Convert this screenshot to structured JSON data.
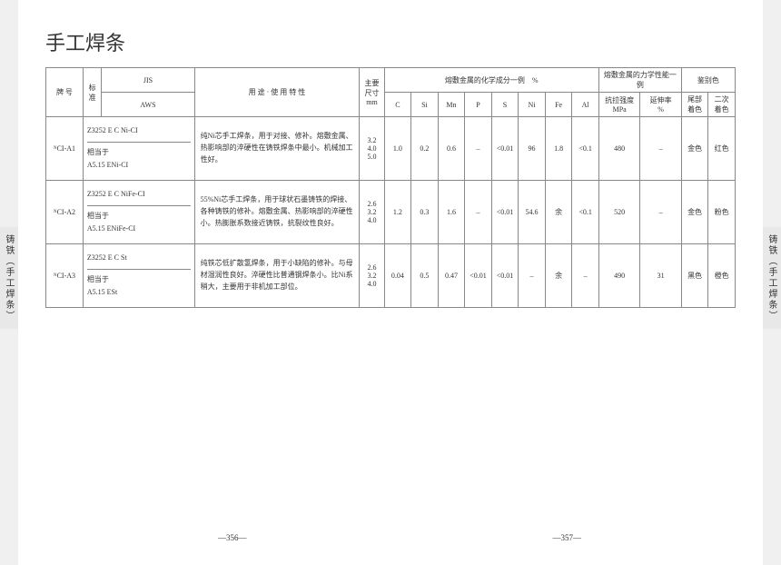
{
  "title": "手工焊条",
  "side_tab": "铸铁（手工焊条）",
  "page_left": "—356—",
  "page_right": "—357—",
  "headers": {
    "grade": "牌 号",
    "standard": "标\n准",
    "jis": "JIS",
    "aws": "AWS",
    "usage": "用 途 · 使 用 特 性",
    "size": "主要\n尺寸\nmm",
    "chem_group": "熔敷金属的化学成分一例　%",
    "mech_group": "熔敷金属的力学性能一例",
    "color_group": "鉴别色",
    "c": "C",
    "si": "Si",
    "mn": "Mn",
    "p": "P",
    "s": "S",
    "ni": "Ni",
    "fe": "Fe",
    "al": "Al",
    "tensile": "抗拉强度\nMPa",
    "elong": "延伸率\n%",
    "color1": "尾部\n着色",
    "color2": "二次\n着色"
  },
  "rows": [
    {
      "grade": "ᴺCI-A1",
      "jis": "Z3252 E C Ni-CI",
      "aws_prefix": "相当于",
      "aws": "A5.15 ENi-CI",
      "usage": "纯Ni芯手工焊条，用于对接、修补。熔敷金属、热影响部的淬硬性在铸铁焊条中最小。机械加工性好。",
      "size": "3.2\n4.0\n5.0",
      "c": "1.0",
      "si": "0.2",
      "mn": "0.6",
      "p": "–",
      "s": "<0.01",
      "ni": "96",
      "fe": "1.8",
      "al": "<0.1",
      "tensile": "480",
      "elong": "–",
      "color1": "金色",
      "color2": "红色"
    },
    {
      "grade": "ᴺCI-A2",
      "jis": "Z3252 E C NiFe-CI",
      "aws_prefix": "相当于",
      "aws": "A5.15 ENiFe-CI",
      "usage": "55%Ni芯手工焊条，用于球状石墨铸铁的焊接、各种铸铁的修补。熔敷金属、热影响部的淬硬性小。热膨胀系数接近铸铁，抗裂纹性良好。",
      "size": "2.6\n3.2\n4.0",
      "c": "1.2",
      "si": "0.3",
      "mn": "1.6",
      "p": "–",
      "s": "<0.01",
      "ni": "54.6",
      "fe": "余",
      "al": "<0.1",
      "tensile": "520",
      "elong": "–",
      "color1": "金色",
      "color2": "粉色"
    },
    {
      "grade": "ᴺCI-A3",
      "jis": "Z3252 E C St",
      "aws_prefix": "相当于",
      "aws": "A5.15 ESt",
      "usage": "纯铁芯低扩散氢焊条，用于小缺陷的修补。与母材湿润性良好。淬硬性比普通钢焊条小。比Ni系稍大，主要用于非机加工部位。",
      "size": "2.6\n3.2\n4.0",
      "c": "0.04",
      "si": "0.5",
      "mn": "0.47",
      "p": "<0.01",
      "s": "<0.01",
      "ni": "–",
      "fe": "余",
      "al": "–",
      "tensile": "490",
      "elong": "31",
      "color1": "黑色",
      "color2": "橙色"
    }
  ]
}
